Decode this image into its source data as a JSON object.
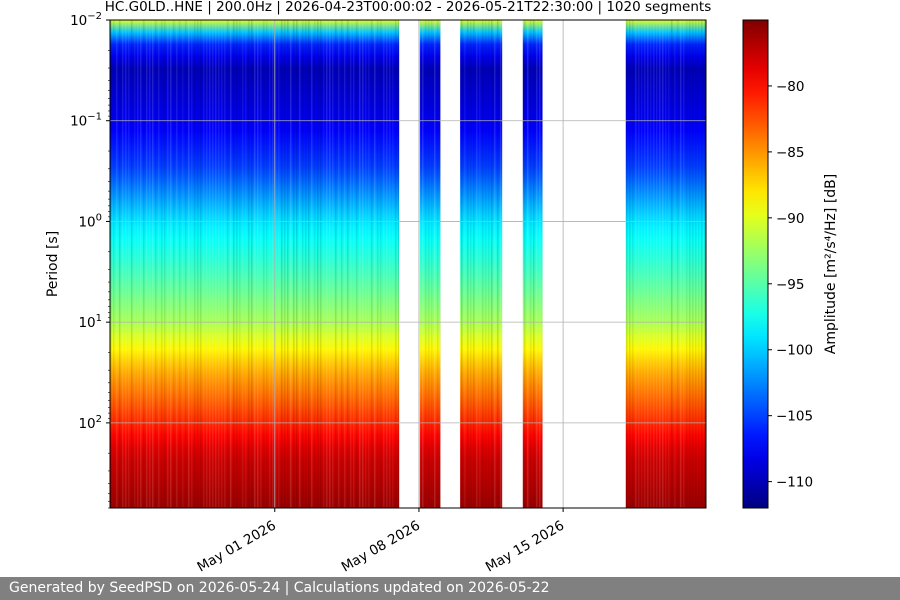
{
  "footer": {
    "text": "Generated by SeedPSD on 2026-05-24 | Calculations updated on 2026-05-22"
  },
  "chart_data": {
    "type": "heatmap",
    "title": "HC.G0LD..HNE | 200.0Hz | 2026-04-23T00:00:02 - 2026-05-21T22:30:00 | 1020 segments",
    "xlabel": "",
    "ylabel": "Period [s]",
    "colorbar_label": "Amplitude [m²/s⁴/Hz] [dB]",
    "colormap": "jet",
    "x_scale": "time",
    "x_range": [
      "2026-04-23",
      "2026-05-21T22:30"
    ],
    "x_ticks": [
      {
        "date": "2026-05-01",
        "label": "May 01 2026"
      },
      {
        "date": "2026-05-08",
        "label": "May 08 2026"
      },
      {
        "date": "2026-05-15",
        "label": "May 15 2026"
      }
    ],
    "y_scale": "log",
    "y_inverted": true,
    "y_range": [
      0.01,
      700
    ],
    "y_ticks": [
      {
        "value": 0.01,
        "base": "10",
        "exp": "−2"
      },
      {
        "value": 0.1,
        "base": "10",
        "exp": "−1"
      },
      {
        "value": 1,
        "base": "10",
        "exp": "0"
      },
      {
        "value": 10,
        "base": "10",
        "exp": "1"
      },
      {
        "value": 100,
        "base": "10",
        "exp": "2"
      }
    ],
    "color_range": [
      -112,
      -75
    ],
    "colorbar_ticks": [
      -80,
      -85,
      -90,
      -95,
      -100,
      -105,
      -110
    ],
    "grid": true,
    "data_gaps": [
      [
        "2026-05-07T01:00",
        "2026-05-08T01:00"
      ],
      [
        "2026-05-09T01:00",
        "2026-05-10T00:00"
      ],
      [
        "2026-05-12T01:00",
        "2026-05-13T01:00"
      ],
      [
        "2026-05-14T00:00",
        "2026-05-18T01:00"
      ]
    ],
    "psd_profile": [
      {
        "period": 0.01,
        "db": -90
      },
      {
        "period": 0.015,
        "db": -105
      },
      {
        "period": 0.03,
        "db": -110
      },
      {
        "period": 0.1,
        "db": -108
      },
      {
        "period": 0.3,
        "db": -105
      },
      {
        "period": 1,
        "db": -99
      },
      {
        "period": 3,
        "db": -96
      },
      {
        "period": 10,
        "db": -92
      },
      {
        "period": 30,
        "db": -86
      },
      {
        "period": 100,
        "db": -81
      },
      {
        "period": 200,
        "db": -78
      },
      {
        "period": 700,
        "db": -76
      }
    ]
  }
}
